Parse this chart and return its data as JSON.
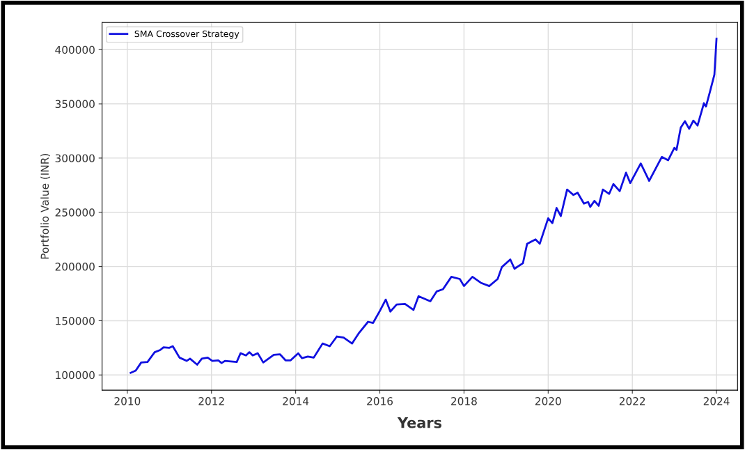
{
  "chart_data": {
    "type": "line",
    "xlabel": "Years",
    "ylabel": "Portfolio Value (INR)",
    "x": [
      2010.08,
      2010.2,
      2010.33,
      2010.48,
      2010.65,
      2010.78,
      2010.86,
      2011.0,
      2011.08,
      2011.24,
      2011.41,
      2011.49,
      2011.66,
      2011.77,
      2011.91,
      2012.02,
      2012.16,
      2012.24,
      2012.32,
      2012.6,
      2012.69,
      2012.82,
      2012.9,
      2012.98,
      2013.1,
      2013.23,
      2013.48,
      2013.63,
      2013.76,
      2013.88,
      2014.06,
      2014.15,
      2014.29,
      2014.43,
      2014.64,
      2014.81,
      2014.98,
      2015.14,
      2015.34,
      2015.51,
      2015.72,
      2015.84,
      2016.0,
      2016.14,
      2016.25,
      2016.4,
      2016.6,
      2016.8,
      2016.92,
      2017.2,
      2017.35,
      2017.5,
      2017.7,
      2017.9,
      2018.0,
      2018.2,
      2018.4,
      2018.6,
      2018.8,
      2018.9,
      2019.1,
      2019.2,
      2019.4,
      2019.5,
      2019.7,
      2019.8,
      2020.0,
      2020.1,
      2020.2,
      2020.3,
      2020.45,
      2020.6,
      2020.7,
      2020.85,
      2020.95,
      2021.0,
      2021.1,
      2021.2,
      2021.3,
      2021.45,
      2021.55,
      2021.7,
      2021.85,
      2021.95,
      2022.2,
      2022.4,
      2022.7,
      2022.85,
      2023.0,
      2023.05,
      2023.15,
      2023.25,
      2023.35,
      2023.45,
      2023.55,
      2023.7,
      2023.75,
      2023.85,
      2023.95,
      2024.0
    ],
    "series": [
      {
        "name": "SMA Crossover Strategy",
        "color": "#1010e0",
        "values": [
          102000,
          104000,
          111500,
          112000,
          121000,
          123000,
          125500,
          125000,
          126500,
          116000,
          113000,
          115000,
          109500,
          115000,
          116000,
          113000,
          113500,
          111000,
          113000,
          112000,
          120000,
          118000,
          121000,
          118000,
          120000,
          111500,
          118500,
          119000,
          113500,
          113500,
          120000,
          115500,
          117000,
          116000,
          129000,
          126500,
          135500,
          134500,
          129000,
          139000,
          149000,
          148000,
          159000,
          169500,
          158500,
          165000,
          165500,
          160000,
          172600,
          168000,
          177000,
          179000,
          190500,
          188500,
          182000,
          190500,
          185000,
          182000,
          188500,
          199500,
          206500,
          198000,
          203000,
          221000,
          225000,
          221000,
          244500,
          240000,
          254000,
          246500,
          271000,
          266000,
          268000,
          258000,
          259500,
          255000,
          260500,
          256000,
          271000,
          267000,
          276000,
          269500,
          286500,
          277000,
          295000,
          279000,
          301000,
          298000,
          309500,
          307500,
          328000,
          334000,
          327000,
          334500,
          330000,
          350500,
          347500,
          362000,
          377000,
          410000
        ]
      }
    ],
    "xlim": [
      2009.4,
      2024.5
    ],
    "xticks": [
      2010,
      2012,
      2014,
      2016,
      2018,
      2020,
      2022,
      2024
    ],
    "ylim": [
      86000,
      425000
    ],
    "yticks": [
      100000,
      150000,
      200000,
      250000,
      300000,
      350000,
      400000
    ],
    "grid": true,
    "legend": "top left"
  }
}
